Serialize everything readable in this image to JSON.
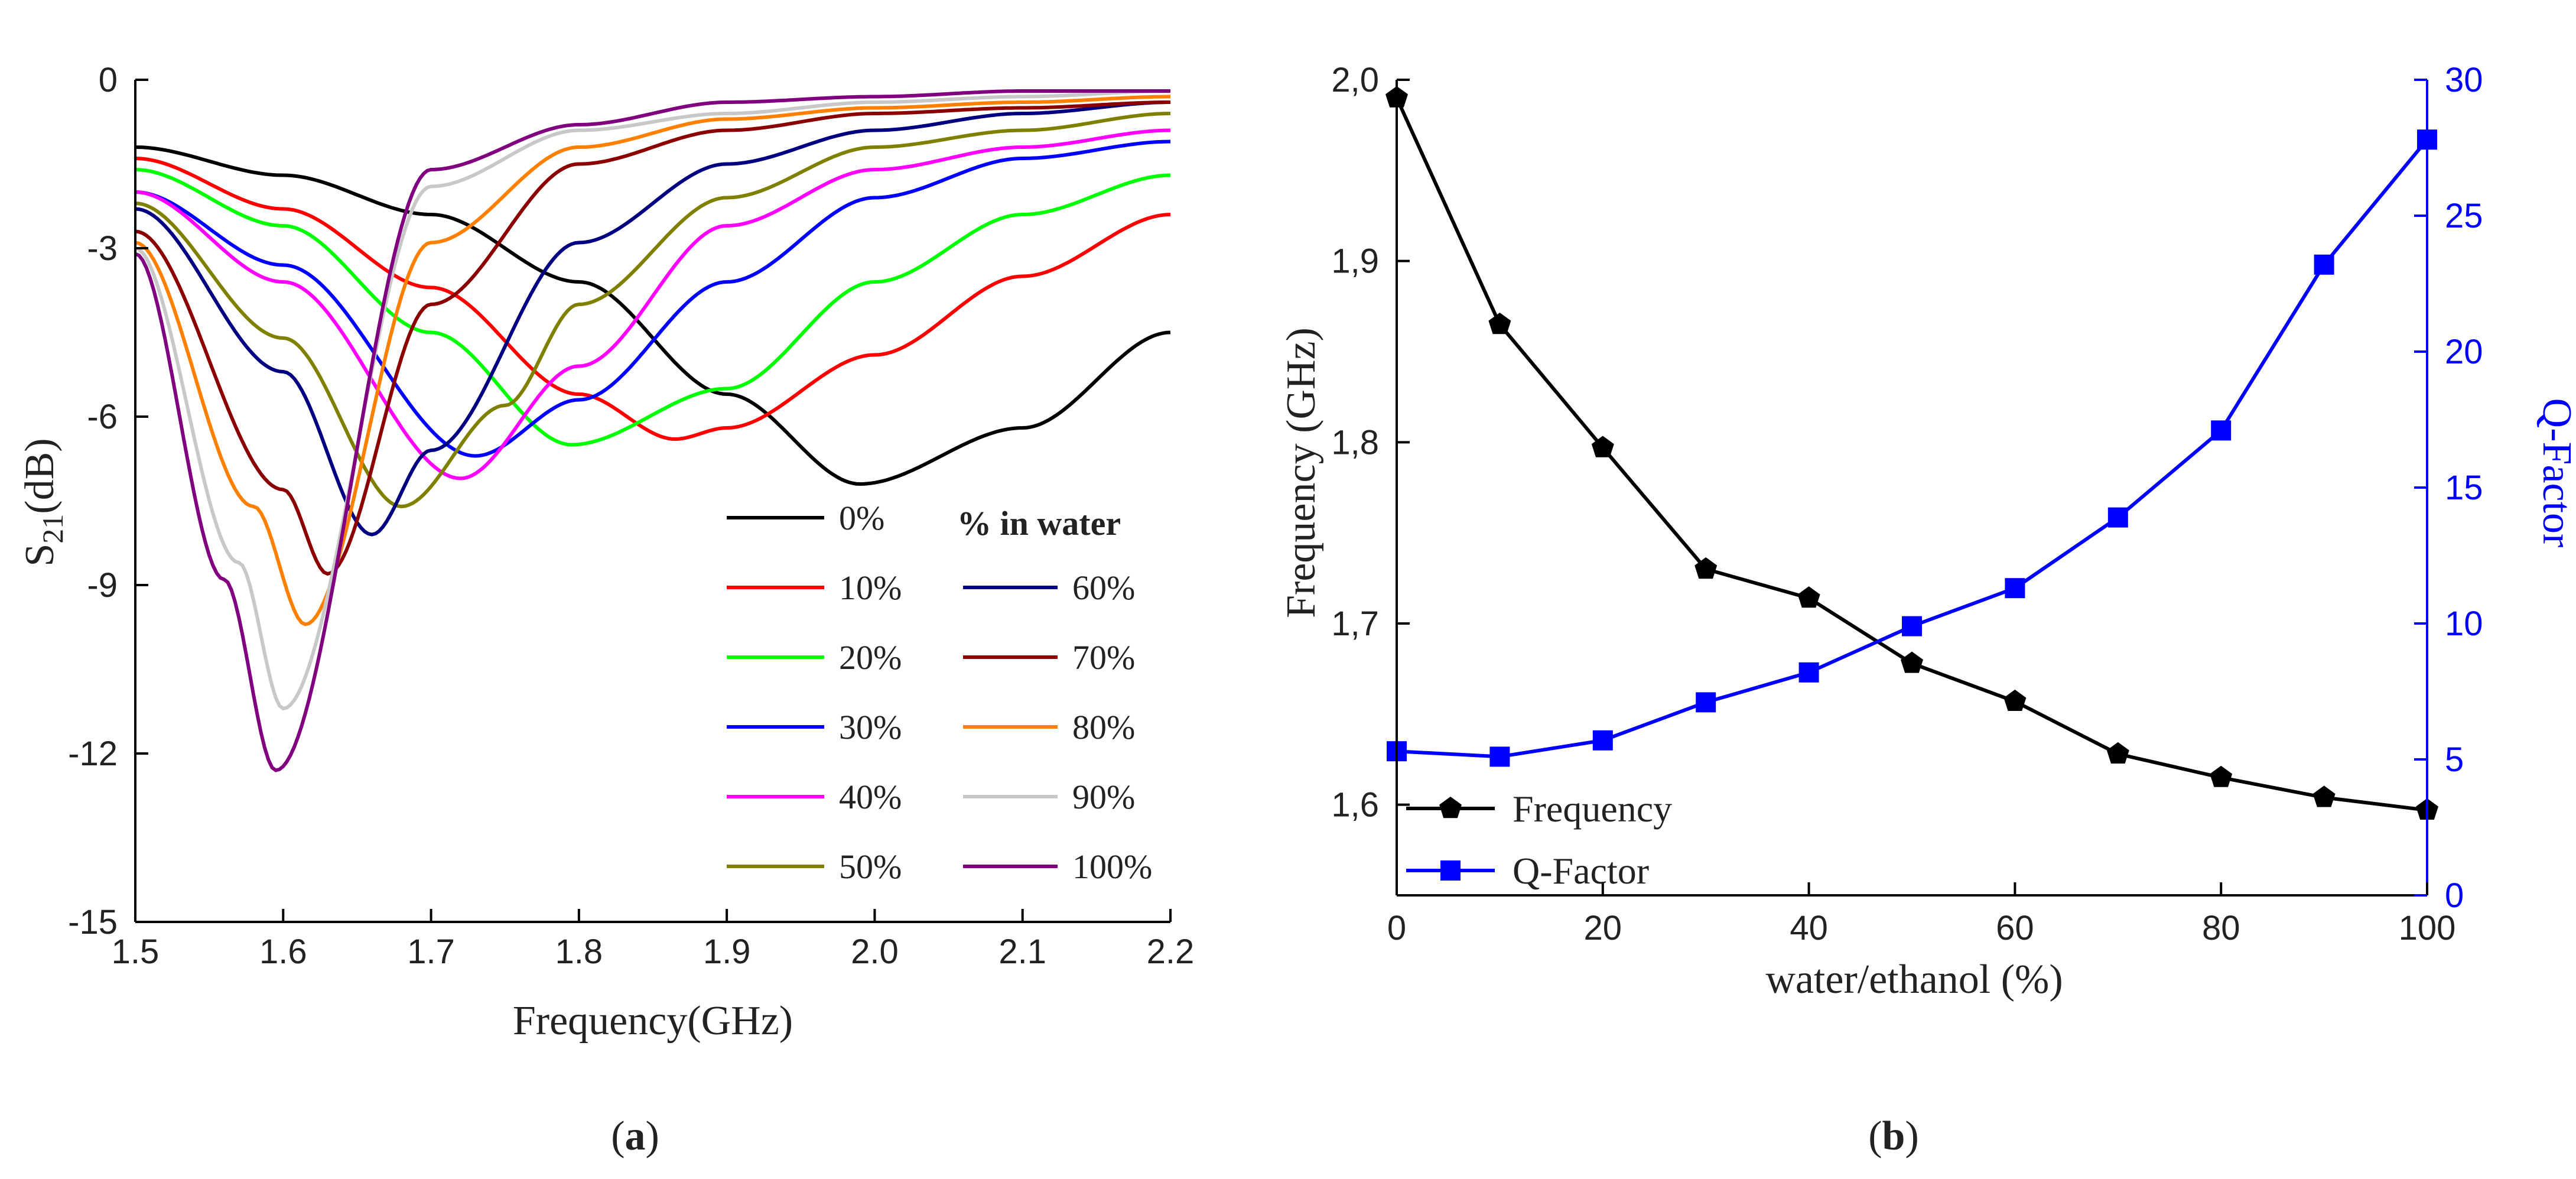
{
  "chart_data": [
    {
      "panel": "a",
      "type": "line",
      "xlabel": "Frequency(GHz)",
      "ylabel_main": "S",
      "ylabel_sub": "21",
      "ylabel_tail": "(dB)",
      "xlim": [
        1.5,
        2.2
      ],
      "ylim": [
        -15,
        0
      ],
      "xticks": [
        "1.5",
        "1.6",
        "1.7",
        "1.8",
        "1.9",
        "2.0",
        "2.1",
        "2.2"
      ],
      "yticks": [
        "0",
        "-3",
        "-6",
        "-9",
        "-12",
        "-15"
      ],
      "legend_title": "% in water",
      "series": [
        {
          "name": "0%",
          "color": "#000000",
          "f0": 1.99,
          "min": -7.2,
          "x": [
            1.5,
            1.6,
            1.7,
            1.8,
            1.9,
            1.99,
            2.1,
            2.2
          ],
          "y": [
            -1.2,
            -1.7,
            -2.4,
            -3.6,
            -5.6,
            -7.2,
            -6.2,
            -4.5
          ]
        },
        {
          "name": "10%",
          "color": "#ff0000",
          "f0": 1.865,
          "min": -6.4,
          "x": [
            1.5,
            1.6,
            1.7,
            1.8,
            1.865,
            1.9,
            2.0,
            2.1,
            2.2
          ],
          "y": [
            -1.4,
            -2.3,
            -3.7,
            -5.6,
            -6.4,
            -6.2,
            -4.9,
            -3.5,
            -2.4
          ]
        },
        {
          "name": "20%",
          "color": "#00ff00",
          "f0": 1.795,
          "min": -6.5,
          "x": [
            1.5,
            1.6,
            1.7,
            1.795,
            1.9,
            2.0,
            2.1,
            2.2
          ],
          "y": [
            -1.6,
            -2.6,
            -4.5,
            -6.5,
            -5.5,
            -3.6,
            -2.4,
            -1.7
          ]
        },
        {
          "name": "30%",
          "color": "#0000ff",
          "f0": 1.73,
          "min": -6.7,
          "x": [
            1.5,
            1.6,
            1.73,
            1.8,
            1.9,
            2.0,
            2.1,
            2.2
          ],
          "y": [
            -2.0,
            -3.3,
            -6.7,
            -5.7,
            -3.6,
            -2.1,
            -1.4,
            -1.1
          ]
        },
        {
          "name": "40%",
          "color": "#ff00ff",
          "f0": 1.72,
          "min": -7.1,
          "x": [
            1.5,
            1.6,
            1.72,
            1.8,
            1.9,
            2.0,
            2.1,
            2.2
          ],
          "y": [
            -2.0,
            -3.6,
            -7.1,
            -5.1,
            -2.6,
            -1.6,
            -1.2,
            -0.9
          ]
        },
        {
          "name": "50%",
          "color": "#808000",
          "f0": 1.68,
          "min": -7.6,
          "x": [
            1.5,
            1.6,
            1.68,
            1.75,
            1.8,
            1.9,
            2.0,
            2.1,
            2.2
          ],
          "y": [
            -2.2,
            -4.6,
            -7.6,
            -5.8,
            -4.0,
            -2.1,
            -1.2,
            -0.9,
            -0.6
          ]
        },
        {
          "name": "60%",
          "color": "#000080",
          "f0": 1.66,
          "min": -8.1,
          "x": [
            1.5,
            1.6,
            1.66,
            1.7,
            1.8,
            1.9,
            2.0,
            2.1,
            2.2
          ],
          "y": [
            -2.3,
            -5.2,
            -8.1,
            -6.6,
            -2.9,
            -1.5,
            -0.9,
            -0.6,
            -0.4
          ]
        },
        {
          "name": "70%",
          "color": "#8b0000",
          "f0": 1.63,
          "min": -8.8,
          "x": [
            1.5,
            1.6,
            1.63,
            1.7,
            1.8,
            1.9,
            2.0,
            2.1,
            2.2
          ],
          "y": [
            -2.7,
            -7.3,
            -8.8,
            -4.0,
            -1.5,
            -0.9,
            -0.6,
            -0.5,
            -0.4
          ]
        },
        {
          "name": "80%",
          "color": "#ff8000",
          "f0": 1.615,
          "min": -9.7,
          "x": [
            1.5,
            1.58,
            1.615,
            1.7,
            1.8,
            1.9,
            2.0,
            2.1,
            2.2
          ],
          "y": [
            -2.9,
            -7.6,
            -9.7,
            -2.9,
            -1.2,
            -0.7,
            -0.5,
            -0.4,
            -0.3
          ]
        },
        {
          "name": "90%",
          "color": "#c8c8c8",
          "f0": 1.6,
          "min": -11.2,
          "x": [
            1.5,
            1.57,
            1.6,
            1.7,
            1.8,
            1.9,
            2.0,
            2.1,
            2.2
          ],
          "y": [
            -3.0,
            -8.6,
            -11.2,
            -1.9,
            -0.9,
            -0.6,
            -0.4,
            -0.3,
            -0.2
          ]
        },
        {
          "name": "100%",
          "color": "#800080",
          "f0": 1.595,
          "min": -12.3,
          "x": [
            1.5,
            1.56,
            1.595,
            1.7,
            1.8,
            1.9,
            2.0,
            2.1,
            2.2
          ],
          "y": [
            -3.1,
            -8.9,
            -12.3,
            -1.6,
            -0.8,
            -0.4,
            -0.3,
            -0.2,
            -0.2
          ]
        }
      ]
    },
    {
      "panel": "b",
      "type": "line",
      "xlabel": "water/ethanol (%)",
      "ylabel_left": "Frequency (GHz)",
      "ylabel_right": "Q-Factor",
      "xlim": [
        0,
        100
      ],
      "ylim_left": [
        1.55,
        2.0
      ],
      "ylim_right": [
        0,
        30
      ],
      "xticks": [
        "0",
        "20",
        "40",
        "60",
        "80",
        "100"
      ],
      "yticks_left": [
        "1,6",
        "1,7",
        "1,8",
        "1,9",
        "2,0"
      ],
      "yticks_right": [
        "0",
        "5",
        "10",
        "15",
        "20",
        "25",
        "30"
      ],
      "x": [
        0,
        10,
        20,
        30,
        40,
        50,
        60,
        70,
        80,
        90,
        100
      ],
      "series": [
        {
          "name": "Frequency",
          "axis": "left",
          "color": "#000000",
          "marker": "pentagon",
          "values": [
            1.99,
            1.865,
            1.797,
            1.73,
            1.714,
            1.678,
            1.657,
            1.628,
            1.615,
            1.604,
            1.597
          ]
        },
        {
          "name": "Q-Factor",
          "axis": "right",
          "color": "#0000ff",
          "marker": "square",
          "values": [
            5.3,
            5.1,
            5.7,
            7.1,
            8.2,
            9.9,
            11.3,
            13.9,
            17.1,
            23.2,
            27.8
          ]
        }
      ]
    }
  ],
  "captions": {
    "a": {
      "open": "(",
      "letter": "a",
      "close": ")"
    },
    "b": {
      "open": "(",
      "letter": "b",
      "close": ")"
    }
  }
}
